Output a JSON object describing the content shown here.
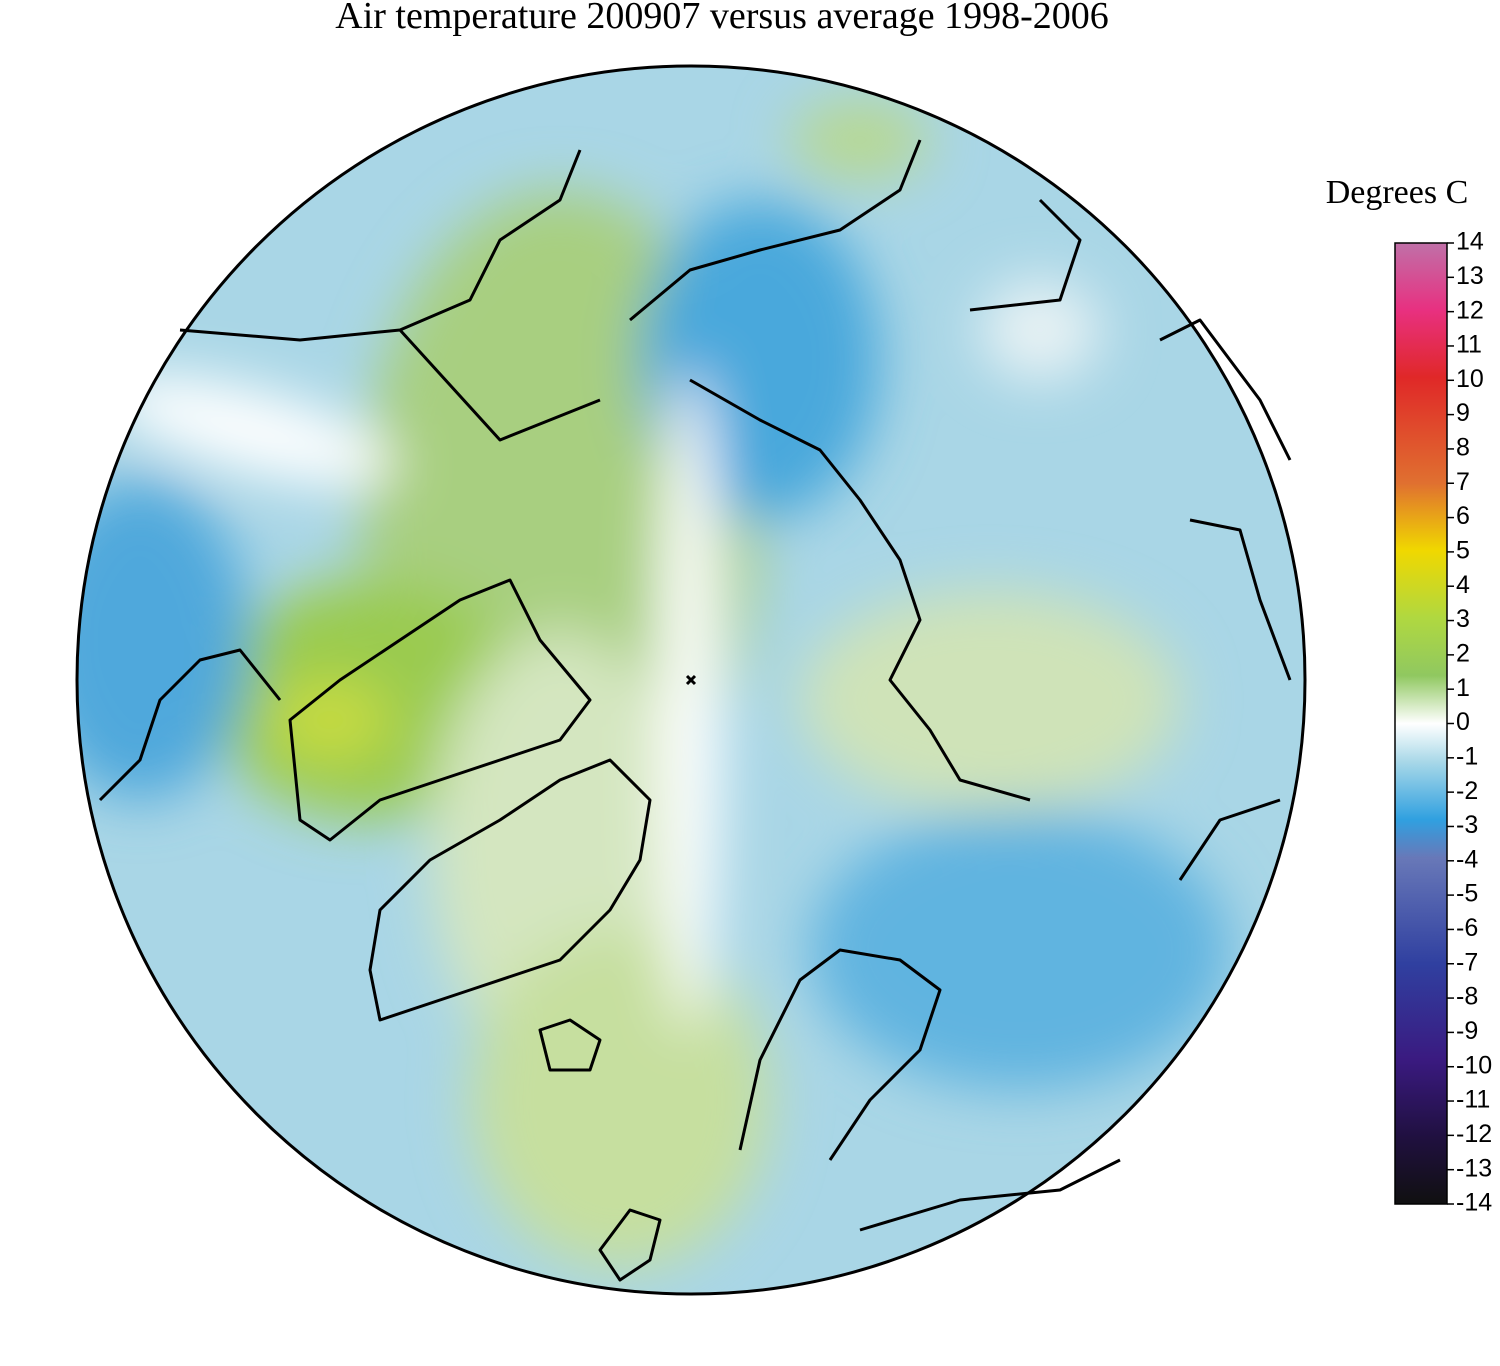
{
  "title": "Air temperature 200907 versus average 1998-2006",
  "colorbar": {
    "label": "Degrees C",
    "lim": [
      -14,
      14
    ],
    "ticks": [
      14,
      13,
      12,
      11,
      10,
      9,
      8,
      7,
      6,
      5,
      4,
      3,
      2,
      1,
      0,
      -1,
      -2,
      -3,
      -4,
      -5,
      -6,
      -7,
      -8,
      -9,
      -10,
      -11,
      -12,
      -13,
      -14
    ]
  }
}
